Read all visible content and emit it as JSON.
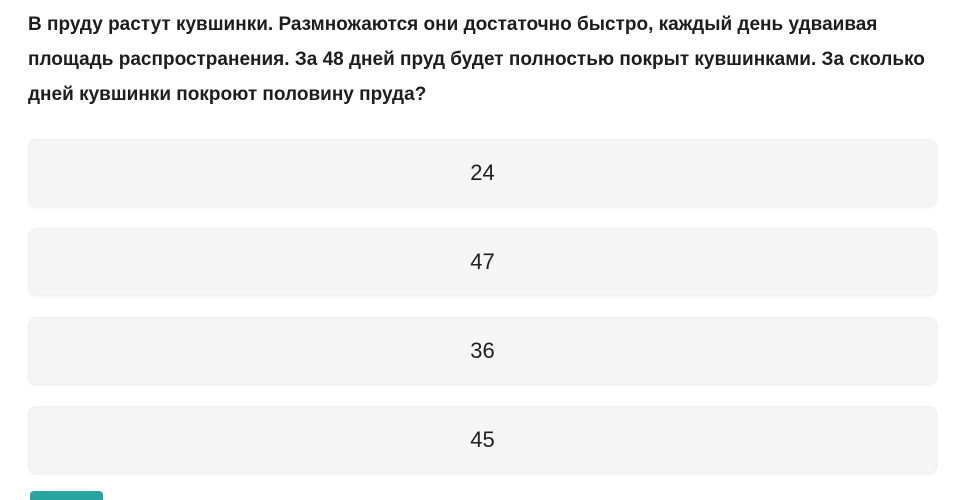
{
  "question": {
    "text": "В пруду растут кувшинки. Размножаются они достаточно быстро, каждый день удваивая площадь распространения. За 48 дней пруд будет полностью покрыт кувшинками. За сколько дней кувшинки покроют половину пруда?",
    "lines": [
      "В пруду растут кувшинки. Размножаются они достаточно быстро, каждый день удваивая",
      "площадь распространения. За 48 дней пруд будет полностью покрыт кувшинками. За сколько",
      "дней кувшинки покроют половину пруда?"
    ]
  },
  "options": [
    {
      "label": "24"
    },
    {
      "label": "47"
    },
    {
      "label": "36"
    },
    {
      "label": "45"
    }
  ],
  "colors": {
    "page_bg": "#ffffff",
    "option_bg": "#f5f5f5",
    "question_text": "#1d1d1d",
    "option_text": "#1f1f1f",
    "submit_accent": "#28a5a1"
  }
}
